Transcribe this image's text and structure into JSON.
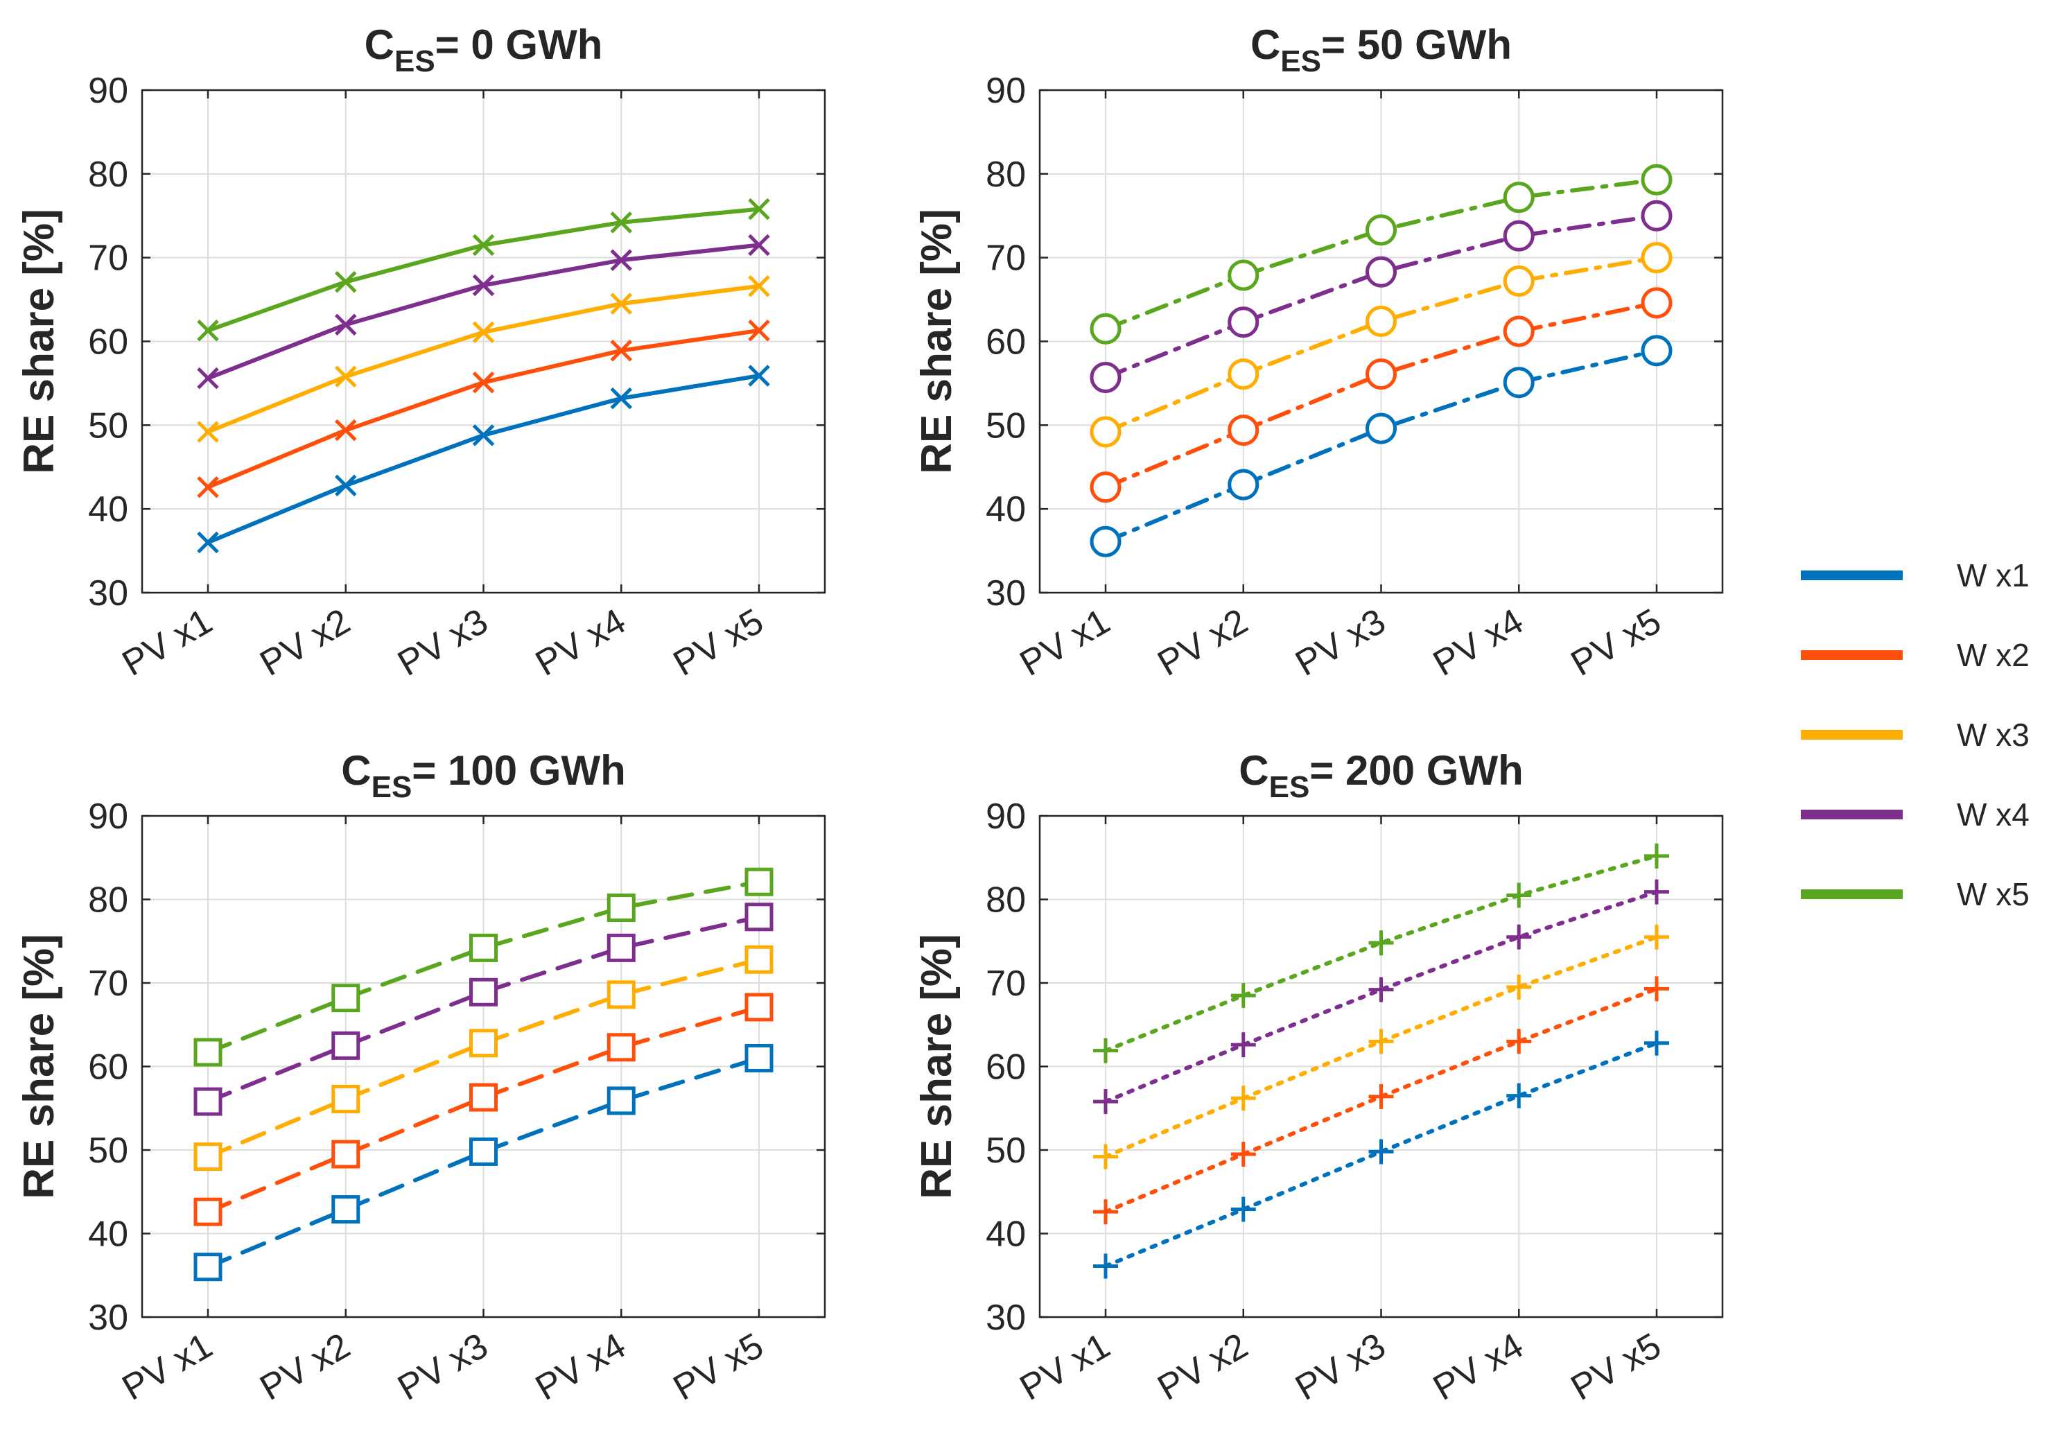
{
  "chart_data": [
    {
      "type": "line",
      "title_main": "C",
      "title_sub": "ES",
      "title_rest": "= 0 GWh",
      "ylabel": "RE share [%]",
      "ylim": [
        30,
        90
      ],
      "yticks": [
        30,
        40,
        50,
        60,
        70,
        80,
        90
      ],
      "categories": [
        "PV x1",
        "PV x2",
        "PV x3",
        "PV x4",
        "PV x5"
      ],
      "line_style": "solid",
      "marker": "x",
      "grid": true,
      "series": [
        {
          "name": "W x1",
          "values": [
            36.0,
            42.8,
            48.8,
            53.2,
            55.9
          ]
        },
        {
          "name": "W x2",
          "values": [
            42.6,
            49.4,
            55.1,
            58.9,
            61.3
          ]
        },
        {
          "name": "W x3",
          "values": [
            49.2,
            55.8,
            61.1,
            64.5,
            66.6
          ]
        },
        {
          "name": "W x4",
          "values": [
            55.6,
            62.0,
            66.7,
            69.7,
            71.5
          ]
        },
        {
          "name": "W x5",
          "values": [
            61.3,
            67.1,
            71.5,
            74.2,
            75.8
          ]
        }
      ]
    },
    {
      "type": "line",
      "title_main": "C",
      "title_sub": "ES",
      "title_rest": "= 50 GWh",
      "ylabel": "RE share [%]",
      "ylim": [
        30,
        90
      ],
      "yticks": [
        30,
        40,
        50,
        60,
        70,
        80,
        90
      ],
      "categories": [
        "PV x1",
        "PV x2",
        "PV x3",
        "PV x4",
        "PV x5"
      ],
      "line_style": "dashdot",
      "marker": "o",
      "grid": true,
      "series": [
        {
          "name": "W x1",
          "values": [
            36.1,
            42.9,
            49.6,
            55.1,
            58.9
          ]
        },
        {
          "name": "W x2",
          "values": [
            42.6,
            49.4,
            56.1,
            61.2,
            64.6
          ]
        },
        {
          "name": "W x3",
          "values": [
            49.2,
            56.1,
            62.4,
            67.2,
            70.0
          ]
        },
        {
          "name": "W x4",
          "values": [
            55.7,
            62.3,
            68.3,
            72.6,
            75.0
          ]
        },
        {
          "name": "W x5",
          "values": [
            61.5,
            67.9,
            73.3,
            77.2,
            79.3
          ]
        }
      ]
    },
    {
      "type": "line",
      "title_main": "C",
      "title_sub": "ES",
      "title_rest": "= 100 GWh",
      "ylabel": "RE share [%]",
      "ylim": [
        30,
        90
      ],
      "yticks": [
        30,
        40,
        50,
        60,
        70,
        80,
        90
      ],
      "categories": [
        "PV x1",
        "PV x2",
        "PV x3",
        "PV x4",
        "PV x5"
      ],
      "line_style": "dashed",
      "marker": "square",
      "grid": true,
      "series": [
        {
          "name": "W x1",
          "values": [
            36.0,
            42.9,
            49.8,
            55.9,
            61.0
          ]
        },
        {
          "name": "W x2",
          "values": [
            42.6,
            49.5,
            56.3,
            62.3,
            67.1
          ]
        },
        {
          "name": "W x3",
          "values": [
            49.2,
            56.1,
            62.8,
            68.6,
            72.8
          ]
        },
        {
          "name": "W x4",
          "values": [
            55.8,
            62.5,
            68.9,
            74.2,
            77.9
          ]
        },
        {
          "name": "W x5",
          "values": [
            61.7,
            68.2,
            74.2,
            79.0,
            82.1
          ]
        }
      ]
    },
    {
      "type": "line",
      "title_main": "C",
      "title_sub": "ES",
      "title_rest": "= 200 GWh",
      "ylabel": "RE share [%]",
      "ylim": [
        30,
        90
      ],
      "yticks": [
        30,
        40,
        50,
        60,
        70,
        80,
        90
      ],
      "categories": [
        "PV x1",
        "PV x2",
        "PV x3",
        "PV x4",
        "PV x5"
      ],
      "line_style": "dotted",
      "marker": "plus",
      "grid": true,
      "series": [
        {
          "name": "W x1",
          "values": [
            36.1,
            42.9,
            49.8,
            56.5,
            62.8
          ]
        },
        {
          "name": "W x2",
          "values": [
            42.6,
            49.5,
            56.4,
            63.0,
            69.3
          ]
        },
        {
          "name": "W x3",
          "values": [
            49.2,
            56.2,
            63.0,
            69.5,
            75.5
          ]
        },
        {
          "name": "W x4",
          "values": [
            55.8,
            62.6,
            69.2,
            75.5,
            80.9
          ]
        },
        {
          "name": "W x5",
          "values": [
            61.9,
            68.5,
            74.8,
            80.5,
            85.2
          ]
        }
      ]
    }
  ],
  "legend": {
    "placement": "right",
    "entries": [
      {
        "label": "W x1",
        "color": "#0072BD"
      },
      {
        "label": "W x2",
        "color": "#FF4F0A"
      },
      {
        "label": "W x3",
        "color": "#FFAD00"
      },
      {
        "label": "W x4",
        "color": "#7E2F8E"
      },
      {
        "label": "W x5",
        "color": "#5AA61E"
      }
    ]
  }
}
